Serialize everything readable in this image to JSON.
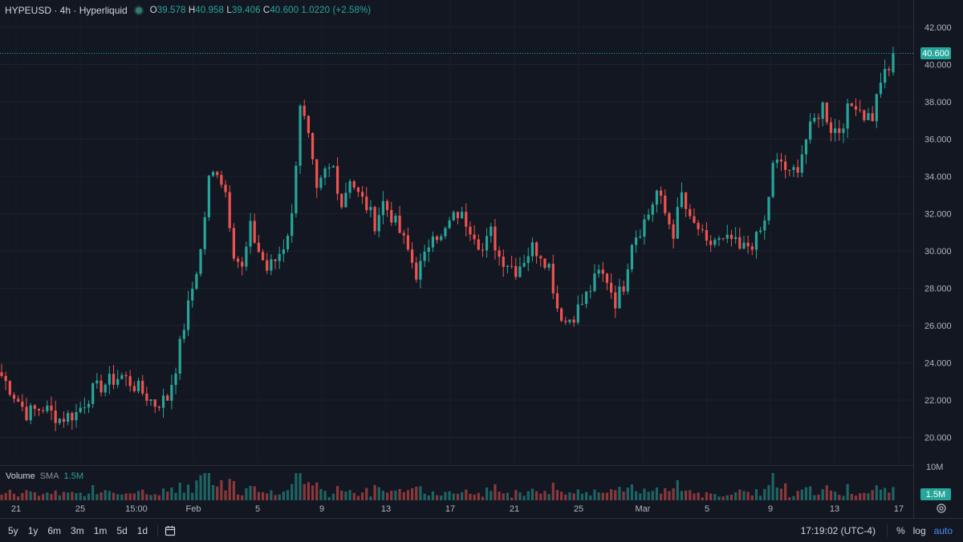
{
  "legend": {
    "symbol": "HYPEUSD · 4h · Hyperliquid",
    "o_label": "O",
    "o": "39.578",
    "h_label": "H",
    "h": "40.958",
    "l_label": "L",
    "l": "39.406",
    "c_label": "C",
    "c": "40.600",
    "change": "1.0220 (+2.58%)"
  },
  "volume_legend": {
    "title": "Volume",
    "sma": "SMA",
    "value": "1.5M"
  },
  "price_axis": {
    "ticks": [
      "42.000",
      "40.000",
      "38.000",
      "36.000",
      "34.000",
      "32.000",
      "30.000",
      "28.000",
      "26.000",
      "24.000",
      "22.000",
      "20.000"
    ],
    "last_price": "40.600",
    "volume_tick": "10M",
    "volume_last": "1.5M"
  },
  "time_axis": {
    "ticks": [
      "21",
      "25",
      "15:00",
      "Feb",
      "5",
      "9",
      "13",
      "17",
      "21",
      "25",
      "Mar",
      "5",
      "9",
      "13",
      "17"
    ]
  },
  "bottom_bar": {
    "ranges": [
      "5y",
      "1y",
      "6m",
      "3m",
      "1m",
      "5d",
      "1d"
    ],
    "clock": "17:19:02 (UTC-4)",
    "percent": "%",
    "log": "log",
    "auto": "auto"
  },
  "colors": {
    "up": "#26a69a",
    "down": "#ef5350",
    "background": "#131722",
    "grid": "#1e222d"
  },
  "chart_data": {
    "type": "candlestick",
    "interval": "4h",
    "ylim": [
      19.0,
      42.6
    ],
    "volume_axis_max": 10000000,
    "volume_sma": 1500000,
    "close_path": [
      [
        0,
        23.3
      ],
      [
        6,
        21.3
      ],
      [
        10,
        21.6
      ],
      [
        14,
        21.0
      ],
      [
        18,
        21.3
      ],
      [
        22,
        22.5
      ],
      [
        26,
        23.0
      ],
      [
        29,
        23.3
      ],
      [
        33,
        22.6
      ],
      [
        37,
        21.8
      ],
      [
        40,
        22.1
      ],
      [
        42,
        23.8
      ],
      [
        44,
        26.0
      ],
      [
        46,
        28.0
      ],
      [
        48,
        30.0
      ],
      [
        50,
        33.8
      ],
      [
        52,
        34.4
      ],
      [
        54,
        33.2
      ],
      [
        56,
        30.0
      ],
      [
        58,
        29.0
      ],
      [
        60,
        31.2
      ],
      [
        62,
        30.0
      ],
      [
        64,
        29.0
      ],
      [
        66,
        29.5
      ],
      [
        68,
        30.3
      ],
      [
        70,
        31.8
      ],
      [
        72,
        38.0
      ],
      [
        74,
        36.0
      ],
      [
        76,
        33.0
      ],
      [
        78,
        34.2
      ],
      [
        80,
        34.5
      ],
      [
        82,
        32.5
      ],
      [
        84,
        34.0
      ],
      [
        86,
        33.0
      ],
      [
        88,
        32.4
      ],
      [
        90,
        31.5
      ],
      [
        92,
        32.6
      ],
      [
        94,
        31.9
      ],
      [
        96,
        31.0
      ],
      [
        98,
        30.0
      ],
      [
        100,
        28.8
      ],
      [
        102,
        29.6
      ],
      [
        104,
        31.2
      ],
      [
        106,
        30.6
      ],
      [
        108,
        31.5
      ],
      [
        110,
        32.0
      ],
      [
        112,
        31.6
      ],
      [
        114,
        31.0
      ],
      [
        116,
        30.0
      ],
      [
        118,
        31.0
      ],
      [
        120,
        29.7
      ],
      [
        122,
        29.4
      ],
      [
        124,
        29.0
      ],
      [
        126,
        29.6
      ],
      [
        128,
        30.2
      ],
      [
        130,
        29.9
      ],
      [
        132,
        29.2
      ],
      [
        134,
        27.0
      ],
      [
        136,
        26.2
      ],
      [
        138,
        26.6
      ],
      [
        140,
        27.2
      ],
      [
        142,
        28.0
      ],
      [
        144,
        28.8
      ],
      [
        146,
        28.5
      ],
      [
        148,
        27.3
      ],
      [
        150,
        28.2
      ],
      [
        152,
        30.6
      ],
      [
        154,
        31.2
      ],
      [
        156,
        32.0
      ],
      [
        158,
        33.2
      ],
      [
        160,
        32.0
      ],
      [
        162,
        31.0
      ],
      [
        164,
        33.0
      ],
      [
        166,
        31.5
      ],
      [
        168,
        31.2
      ],
      [
        170,
        30.2
      ],
      [
        172,
        30.6
      ],
      [
        174,
        30.4
      ],
      [
        176,
        30.6
      ],
      [
        178,
        30.0
      ],
      [
        180,
        30.3
      ],
      [
        182,
        30.6
      ],
      [
        184,
        31.5
      ],
      [
        186,
        34.5
      ],
      [
        188,
        34.8
      ],
      [
        190,
        34.0
      ],
      [
        192,
        34.6
      ],
      [
        194,
        36.0
      ],
      [
        196,
        37.0
      ],
      [
        198,
        37.8
      ],
      [
        200,
        36.6
      ],
      [
        202,
        36.5
      ],
      [
        204,
        37.5
      ],
      [
        206,
        38.0
      ],
      [
        208,
        37.3
      ],
      [
        210,
        37.2
      ],
      [
        212,
        39.2
      ],
      [
        214,
        39.6
      ],
      [
        215,
        40.6
      ]
    ]
  }
}
